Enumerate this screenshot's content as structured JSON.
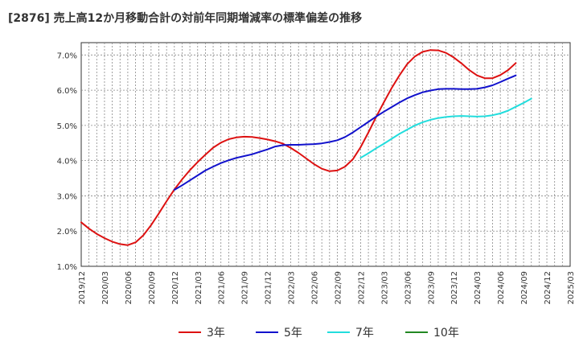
{
  "chart_data": {
    "type": "line",
    "title": "[2876]  売上高12か月移動合計の対前年同期増減率の標準偏差の推移",
    "xlabel": "",
    "ylabel": "",
    "x_ticks": [
      "2019/12",
      "2020/03",
      "2020/06",
      "2020/09",
      "2020/12",
      "2021/03",
      "2021/06",
      "2021/09",
      "2021/12",
      "2022/03",
      "2022/06",
      "2022/09",
      "2022/12",
      "2023/03",
      "2023/06",
      "2023/09",
      "2023/12",
      "2024/03",
      "2024/06",
      "2024/09",
      "2024/12",
      "2025/03"
    ],
    "y_ticks": [
      "1.0%",
      "2.0%",
      "3.0%",
      "4.0%",
      "5.0%",
      "6.0%",
      "7.0%"
    ],
    "ylim": [
      1.0,
      7.35
    ],
    "grid": true,
    "legend_position": "bottom",
    "series": [
      {
        "name": "3年",
        "color": "#dd1111",
        "start_index": 0,
        "values": [
          2.25,
          2.07,
          1.92,
          1.8,
          1.7,
          1.63,
          1.6,
          1.68,
          1.88,
          2.17,
          2.5,
          2.85,
          3.18,
          3.47,
          3.73,
          3.96,
          4.17,
          4.37,
          4.51,
          4.61,
          4.66,
          4.68,
          4.67,
          4.64,
          4.6,
          4.55,
          4.48,
          4.36,
          4.22,
          4.06,
          3.9,
          3.77,
          3.7,
          3.72,
          3.83,
          4.04,
          4.38,
          4.8,
          5.24,
          5.66,
          6.06,
          6.42,
          6.74,
          6.96,
          7.09,
          7.14,
          7.13,
          7.06,
          6.93,
          6.76,
          6.57,
          6.42,
          6.34,
          6.34,
          6.43,
          6.57,
          6.77
        ]
      },
      {
        "name": "5年",
        "color": "#1111cc",
        "start_index": 12,
        "values": [
          3.17,
          3.3,
          3.44,
          3.58,
          3.72,
          3.83,
          3.93,
          4.01,
          4.08,
          4.13,
          4.18,
          4.25,
          4.32,
          4.4,
          4.44,
          4.45,
          4.45,
          4.46,
          4.47,
          4.49,
          4.53,
          4.58,
          4.67,
          4.8,
          4.95,
          5.1,
          5.25,
          5.39,
          5.52,
          5.65,
          5.77,
          5.86,
          5.94,
          5.99,
          6.03,
          6.04,
          6.04,
          6.03,
          6.03,
          6.04,
          6.08,
          6.14,
          6.23,
          6.33,
          6.42
        ]
      },
      {
        "name": "7年",
        "color": "#22dddd",
        "start_index": 36,
        "values": [
          4.08,
          4.21,
          4.35,
          4.48,
          4.62,
          4.76,
          4.88,
          5.0,
          5.09,
          5.16,
          5.21,
          5.24,
          5.26,
          5.27,
          5.26,
          5.25,
          5.26,
          5.29,
          5.34,
          5.42,
          5.53,
          5.64,
          5.76
        ]
      },
      {
        "name": "10年",
        "color": "#228822",
        "start_index": 0,
        "values": []
      }
    ]
  }
}
